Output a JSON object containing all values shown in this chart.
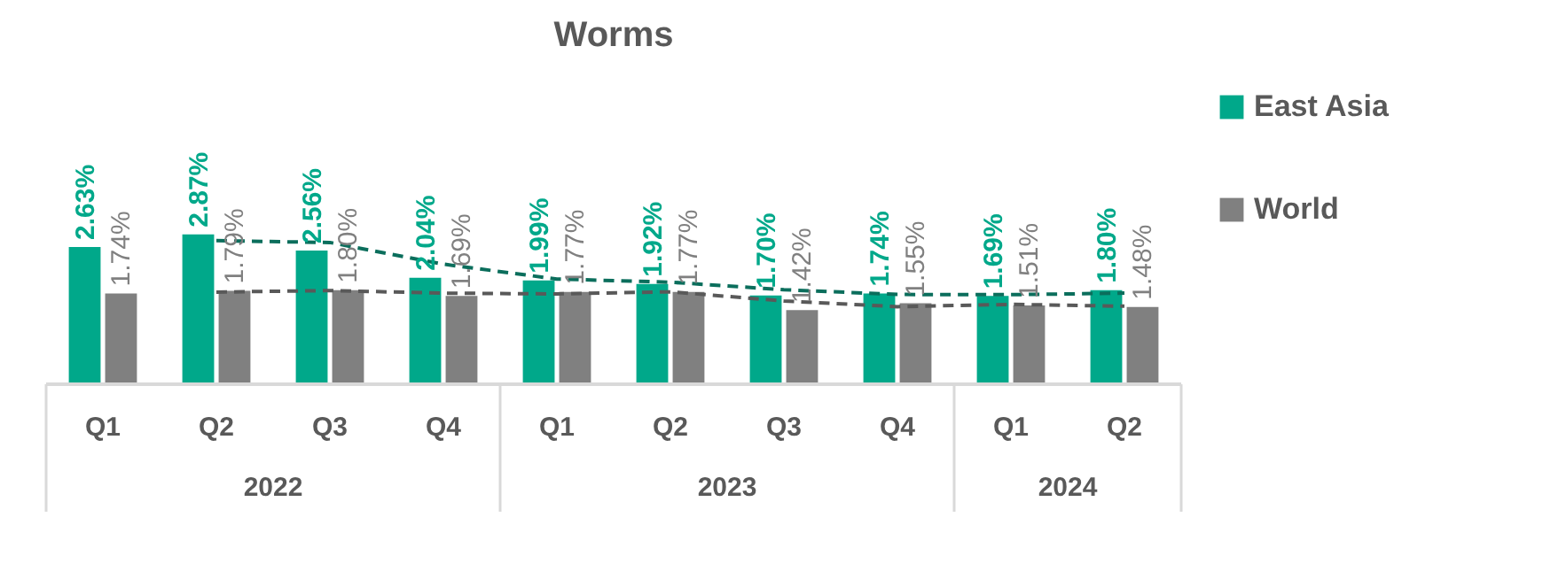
{
  "chart_data": {
    "type": "bar",
    "title": "Worms",
    "categories": [
      "Q1",
      "Q2",
      "Q3",
      "Q4",
      "Q1",
      "Q2",
      "Q3",
      "Q4",
      "Q1",
      "Q2"
    ],
    "annotations": [
      "2022",
      "2023",
      "2024"
    ],
    "series": [
      {
        "name": "East Asia",
        "color": "#00a88a",
        "values": [
          2.63,
          2.87,
          2.56,
          2.04,
          1.99,
          1.92,
          1.7,
          1.74,
          1.69,
          1.8
        ],
        "value_labels": [
          "2.63%",
          "2.87%",
          "2.56%",
          "2.04%",
          "1.99%",
          "1.92%",
          "1.70%",
          "1.74%",
          "1.69%",
          "1.80%"
        ]
      },
      {
        "name": "World",
        "color": "#808080",
        "values": [
          1.74,
          1.79,
          1.8,
          1.69,
          1.77,
          1.77,
          1.42,
          1.55,
          1.51,
          1.48
        ],
        "value_labels": [
          "1.74%",
          "1.79%",
          "1.80%",
          "1.69%",
          "1.77%",
          "1.77%",
          "1.42%",
          "1.55%",
          "1.51%",
          "1.48%"
        ]
      },
      {
        "type": "line",
        "line_style": "dashed",
        "color": "#0b6e5c",
        "values": [
          null,
          2.75,
          2.715,
          2.3,
          2.015,
          1.955,
          1.81,
          1.72,
          1.715,
          1.745
        ]
      },
      {
        "type": "line",
        "line_style": "dashed",
        "color": "#595959",
        "values": [
          null,
          1.765,
          1.795,
          1.745,
          1.73,
          1.77,
          1.595,
          1.485,
          1.53,
          1.495
        ]
      }
    ],
    "legend": "right"
  }
}
